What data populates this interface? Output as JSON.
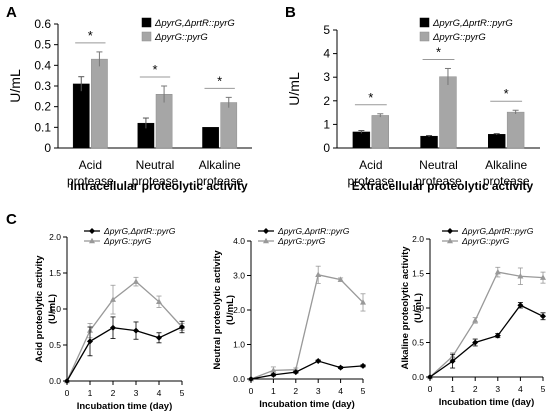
{
  "panel_labels": [
    "A",
    "B",
    "C"
  ],
  "chart_data": [
    {
      "type": "bar",
      "panel": "A",
      "title": "",
      "xlabel": "Intracellular proteolytic activity",
      "ylabel": "U/mL",
      "ylim": [
        0,
        0.6
      ],
      "yticks": [
        "0",
        "0.1",
        "0.2",
        "0.3",
        "0.4",
        "0.5",
        "0.6"
      ],
      "categories": [
        [
          "Acid",
          "protease"
        ],
        [
          "Neutral",
          "protease"
        ],
        [
          "Alkaline",
          "protease"
        ]
      ],
      "legend_position": "top-right",
      "series": [
        {
          "name": "ΔpyrG,ΔprtR::pyrG",
          "color": "#000000",
          "values": [
            0.31,
            0.12,
            0.1
          ],
          "errors": [
            0.035,
            0.025,
            0.0
          ]
        },
        {
          "name": "ΔpyrG::pyrG",
          "color": "#a6a6a6",
          "values": [
            0.43,
            0.26,
            0.22
          ],
          "errors": [
            0.035,
            0.04,
            0.025
          ]
        }
      ],
      "significance": [
        "*",
        "*",
        "*"
      ]
    },
    {
      "type": "bar",
      "panel": "B",
      "title": "",
      "xlabel": "Extracellular proteolytic activity",
      "ylabel": "U/mL",
      "ylim": [
        0,
        5
      ],
      "yticks": [
        "0",
        "1",
        "2",
        "3",
        "4",
        "5"
      ],
      "categories": [
        [
          "Acid",
          "protease"
        ],
        [
          "Neutral",
          "protease"
        ],
        [
          "Alkaline",
          "protease"
        ]
      ],
      "legend_position": "top-right",
      "series": [
        {
          "name": "ΔpyrG,ΔprtR::pyrG",
          "color": "#000000",
          "values": [
            0.68,
            0.5,
            0.58
          ],
          "errors": [
            0.06,
            0.03,
            0.03
          ]
        },
        {
          "name": "ΔpyrG::pyrG",
          "color": "#a6a6a6",
          "values": [
            1.38,
            3.02,
            1.52
          ],
          "errors": [
            0.07,
            0.35,
            0.08
          ]
        }
      ],
      "significance": [
        "*",
        "*",
        "*"
      ]
    },
    {
      "type": "line",
      "panel": "C1",
      "title": "",
      "xlabel": "Incubation time (day)",
      "ylabel": [
        "Acid proteolytic activity",
        "(U/mL)"
      ],
      "xlim": [
        0,
        5
      ],
      "ylim": [
        0,
        2.0
      ],
      "xticks": [
        "0",
        "1",
        "2",
        "3",
        "4",
        "5"
      ],
      "yticks": [
        "0.0",
        "0.5",
        "1.0",
        "1.5",
        "2.0"
      ],
      "legend_position": "top-left",
      "x": [
        0,
        1,
        2,
        3,
        4,
        5
      ],
      "series": [
        {
          "name": "ΔpyrG,ΔprtR::pyrG",
          "color": "#000000",
          "values": [
            0.0,
            0.55,
            0.74,
            0.7,
            0.6,
            0.75
          ],
          "errors": [
            0,
            0.2,
            0.15,
            0.12,
            0.07,
            0.08
          ]
        },
        {
          "name": "ΔpyrG::pyrG",
          "color": "#999999",
          "values": [
            0.0,
            0.7,
            1.13,
            1.38,
            1.1,
            0.75
          ],
          "errors": [
            0,
            0.1,
            0.2,
            0.06,
            0.08,
            0.05
          ]
        }
      ]
    },
    {
      "type": "line",
      "panel": "C2",
      "title": "",
      "xlabel": "Incubation time (day)",
      "ylabel": [
        "Neutral proteolytic activity",
        "(U/mL)"
      ],
      "xlim": [
        0,
        5
      ],
      "ylim": [
        0,
        4.0
      ],
      "xticks": [
        "0",
        "1",
        "2",
        "3",
        "4",
        "5"
      ],
      "yticks": [
        "0.0",
        "1.0",
        "2.0",
        "3.0",
        "4.0"
      ],
      "legend_position": "top-left",
      "x": [
        0,
        1,
        2,
        3,
        4,
        5
      ],
      "series": [
        {
          "name": "ΔpyrG,ΔprtR::pyrG",
          "color": "#000000",
          "values": [
            0.0,
            0.12,
            0.2,
            0.52,
            0.33,
            0.38
          ],
          "errors": [
            0,
            0.03,
            0.03,
            0.03,
            0.03,
            0.03
          ]
        },
        {
          "name": "ΔpyrG::pyrG",
          "color": "#999999",
          "values": [
            0.0,
            0.25,
            0.27,
            3.02,
            2.88,
            2.22
          ],
          "errors": [
            0,
            0.1,
            0.05,
            0.25,
            0.05,
            0.25
          ]
        }
      ]
    },
    {
      "type": "line",
      "panel": "C3",
      "title": "",
      "xlabel": "Incubation time (day)",
      "ylabel": [
        "Alkaline proteolytic activity",
        "(U/mL)"
      ],
      "xlim": [
        0,
        5
      ],
      "ylim": [
        0,
        2.0
      ],
      "xticks": [
        "0",
        "1",
        "2",
        "3",
        "4",
        "5"
      ],
      "yticks": [
        "0.0",
        "0.5",
        "1.0",
        "1.5",
        "2.0"
      ],
      "legend_position": "top-left",
      "x": [
        0,
        1,
        2,
        3,
        4,
        5
      ],
      "series": [
        {
          "name": "ΔpyrG,ΔprtR::pyrG",
          "color": "#000000",
          "values": [
            0.0,
            0.23,
            0.5,
            0.6,
            1.04,
            0.88
          ],
          "errors": [
            0,
            0.1,
            0.05,
            0.03,
            0.04,
            0.05
          ]
        },
        {
          "name": "ΔpyrG::pyrG",
          "color": "#999999",
          "values": [
            0.0,
            0.3,
            0.82,
            1.52,
            1.46,
            1.44
          ],
          "errors": [
            0,
            0.05,
            0.04,
            0.07,
            0.12,
            0.08
          ]
        }
      ]
    }
  ]
}
